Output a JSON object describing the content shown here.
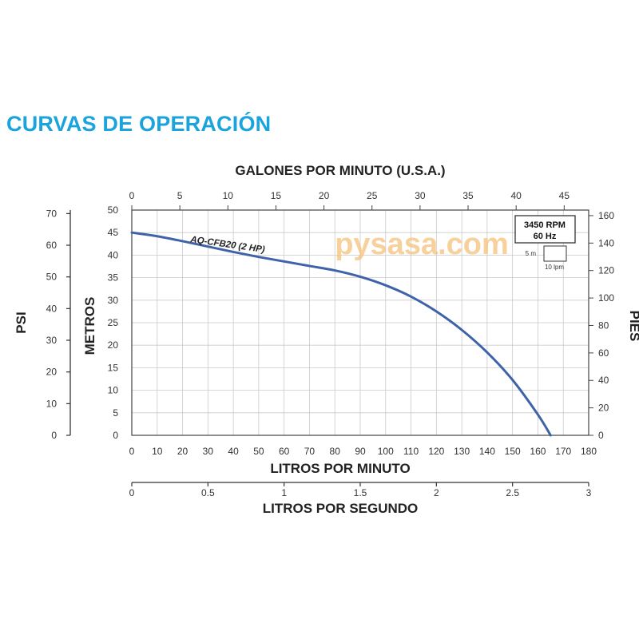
{
  "page": {
    "title": "CURVAS DE OPERACIÓN"
  },
  "watermark": "pysasa.com",
  "chart_data": {
    "type": "line",
    "x": [
      0,
      10,
      20,
      30,
      40,
      50,
      60,
      70,
      80,
      90,
      100,
      110,
      120,
      130,
      140,
      150,
      160,
      165
    ],
    "series": [
      {
        "name": "AQ-CFB20 (2 HP)",
        "color": "#3f63a8",
        "values": [
          45,
          44.2,
          43.1,
          41.9,
          40.7,
          39.6,
          38.6,
          37.6,
          36.6,
          35.2,
          33.3,
          30.8,
          27.5,
          23.4,
          18.4,
          12.3,
          4.6,
          0
        ]
      }
    ],
    "xlabel": "LITROS POR MINUTO",
    "ylabel": "METROS",
    "xlim": [
      0,
      180
    ],
    "ylim": [
      0,
      50
    ],
    "grid": true,
    "x_ticks": [
      "0",
      "10",
      "20",
      "30",
      "40",
      "50",
      "60",
      "70",
      "80",
      "90",
      "100",
      "110",
      "120",
      "130",
      "140",
      "150",
      "160",
      "170",
      "180"
    ],
    "y_ticks": [
      "0",
      "5",
      "10",
      "15",
      "20",
      "25",
      "30",
      "35",
      "40",
      "45",
      "50"
    ],
    "top_axis": {
      "label": "GALONES POR MINUTO (U.S.A.)",
      "max": 47.55,
      "ticks": [
        "0",
        "5",
        "10",
        "15",
        "20",
        "25",
        "30",
        "35",
        "40",
        "45"
      ]
    },
    "bottom_axis2": {
      "label": "LITROS POR SEGUNDO",
      "max": 3,
      "ticks": [
        "0",
        "0.5",
        "1",
        "1.5",
        "2",
        "2.5",
        "3"
      ]
    },
    "left_axis2": {
      "label": "PSI",
      "max": 71.1,
      "ticks": [
        "0",
        "10",
        "20",
        "30",
        "40",
        "50",
        "60",
        "70"
      ]
    },
    "right_axis": {
      "label": "PIES",
      "max": 164.04,
      "ticks": [
        "0",
        "20",
        "40",
        "60",
        "80",
        "100",
        "120",
        "140",
        "160"
      ]
    },
    "legend_box": {
      "rpm": "3450 RPM",
      "hz": "60 Hz",
      "scale_v": "5 m",
      "scale_h": "10 lpm"
    }
  }
}
